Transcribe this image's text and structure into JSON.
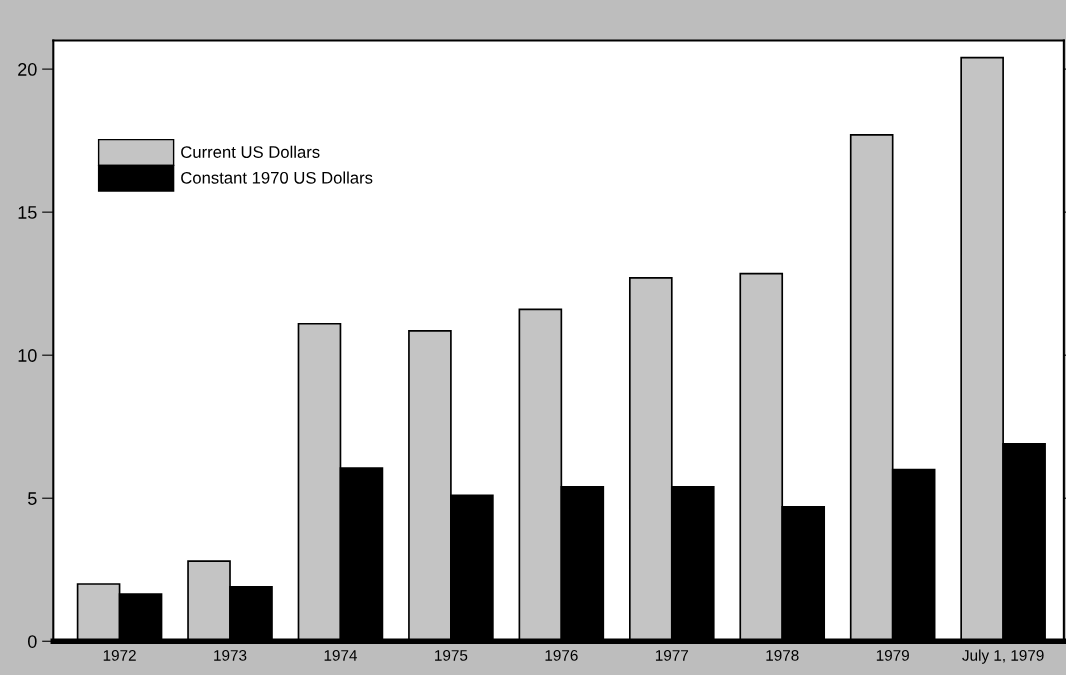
{
  "chart_data": {
    "type": "bar",
    "categories": [
      "1972",
      "1973",
      "1974",
      "1975",
      "1976",
      "1977",
      "1978",
      "1979",
      "July 1, 1979"
    ],
    "series": [
      {
        "name": "Current US Dollars",
        "color": "#c4c4c4",
        "values": [
          2.0,
          2.8,
          11.1,
          10.85,
          11.6,
          12.7,
          12.85,
          17.7,
          20.4
        ]
      },
      {
        "name": "Constant 1970 US Dollars",
        "color": "#000000",
        "values": [
          1.65,
          1.9,
          6.05,
          5.1,
          5.4,
          5.4,
          4.7,
          6.0,
          6.9
        ]
      }
    ],
    "ylim": [
      0,
      21
    ],
    "yticks": [
      0,
      5,
      10,
      15,
      20
    ],
    "grid": false,
    "legend": "top left"
  }
}
